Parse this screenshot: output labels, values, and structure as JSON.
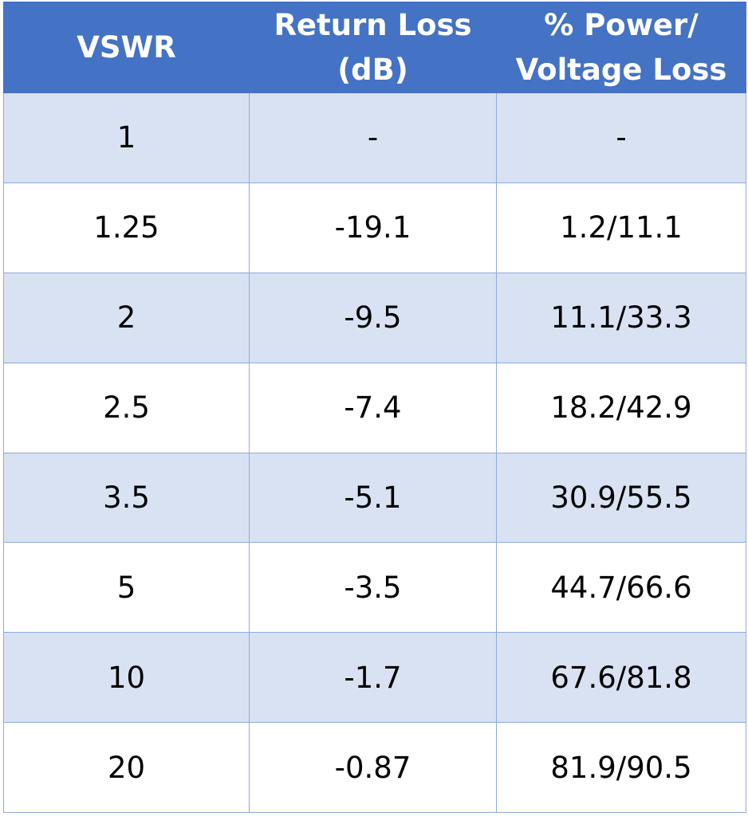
{
  "colors": {
    "header_bg": "#4472C4",
    "band_bg": "#D9E2F3",
    "grid_line": "#8EAADB"
  },
  "table": {
    "headers": [
      {
        "lines": [
          "VSWR"
        ]
      },
      {
        "lines": [
          "Return Loss",
          "(dB)"
        ]
      },
      {
        "lines": [
          "% Power/",
          "Voltage Loss"
        ]
      }
    ],
    "rows": [
      [
        "1",
        "-",
        "-"
      ],
      [
        "1.25",
        "-19.1",
        "1.2/11.1"
      ],
      [
        "2",
        "-9.5",
        "11.1/33.3"
      ],
      [
        "2.5",
        "-7.4",
        "18.2/42.9"
      ],
      [
        "3.5",
        "-5.1",
        "30.9/55.5"
      ],
      [
        "5",
        "-3.5",
        "44.7/66.6"
      ],
      [
        "10",
        "-1.7",
        "67.6/81.8"
      ],
      [
        "20",
        "-0.87",
        "81.9/90.5"
      ]
    ]
  }
}
